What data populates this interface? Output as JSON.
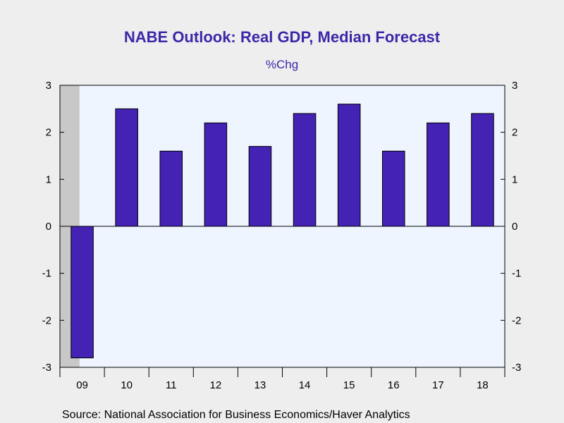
{
  "chart_data": {
    "type": "bar",
    "title": "NABE Outlook: Real GDP, Median Forecast",
    "subtitle": "%Chg",
    "categories": [
      "09",
      "10",
      "11",
      "12",
      "13",
      "14",
      "15",
      "16",
      "17",
      "18"
    ],
    "values": [
      -2.8,
      2.5,
      1.6,
      2.2,
      1.7,
      2.4,
      2.6,
      1.6,
      2.2,
      2.4
    ],
    "ylim": [
      -3,
      3
    ],
    "yticks": [
      "3",
      "2",
      "1",
      "0",
      "-1",
      "-2",
      "-3"
    ],
    "ytick_values": [
      3,
      2,
      1,
      0,
      -1,
      -2,
      -3
    ],
    "grid": false,
    "recession_shading_category": "09",
    "source": "Source:  National Association for Business Economics/Haver Analytics"
  },
  "colors": {
    "title": "#3b28a8",
    "bar": "#4322b4",
    "plot_background": "#eef5ff",
    "page_background": "#eeeeee",
    "recession": "#c8c8c8"
  }
}
